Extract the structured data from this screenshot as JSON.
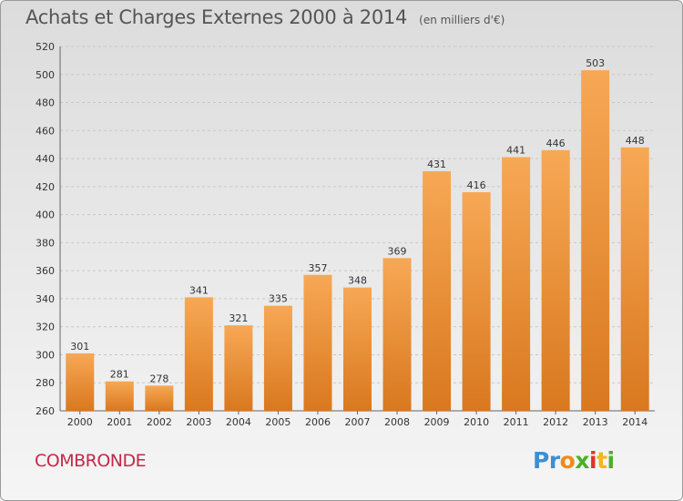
{
  "header": {
    "title": "Achats et Charges Externes 2000 à 2014",
    "subtitle": "(en milliers d'€)"
  },
  "footer": {
    "town": "COMBRONDE",
    "logo_letters": [
      "P",
      "r",
      "o",
      "x",
      "i",
      "t",
      "i"
    ],
    "logo_colors": [
      "#3a8fd6",
      "#3a8fd6",
      "#f08a1c",
      "#4caf2a",
      "#e0332a",
      "#f0b81c",
      "#4caf2a"
    ]
  },
  "colors": {
    "bar_top": "#f7a855",
    "bar_bottom": "#d9781f",
    "grid": "#c8c8c8",
    "town": "#c4284a"
  },
  "chart_data": {
    "type": "bar",
    "title": "Achats et Charges Externes 2000 à 2014",
    "subtitle": "(en milliers d'€)",
    "categories": [
      "2000",
      "2001",
      "2002",
      "2003",
      "2004",
      "2005",
      "2006",
      "2007",
      "2008",
      "2009",
      "2010",
      "2011",
      "2012",
      "2013",
      "2014"
    ],
    "values": [
      301,
      281,
      278,
      341,
      321,
      335,
      357,
      348,
      369,
      431,
      416,
      441,
      446,
      503,
      448
    ],
    "ylim": [
      260,
      520
    ],
    "yticks": [
      260,
      280,
      300,
      320,
      340,
      360,
      380,
      400,
      420,
      440,
      460,
      480,
      500,
      520
    ],
    "grid": true,
    "xlabel": "",
    "ylabel": ""
  }
}
